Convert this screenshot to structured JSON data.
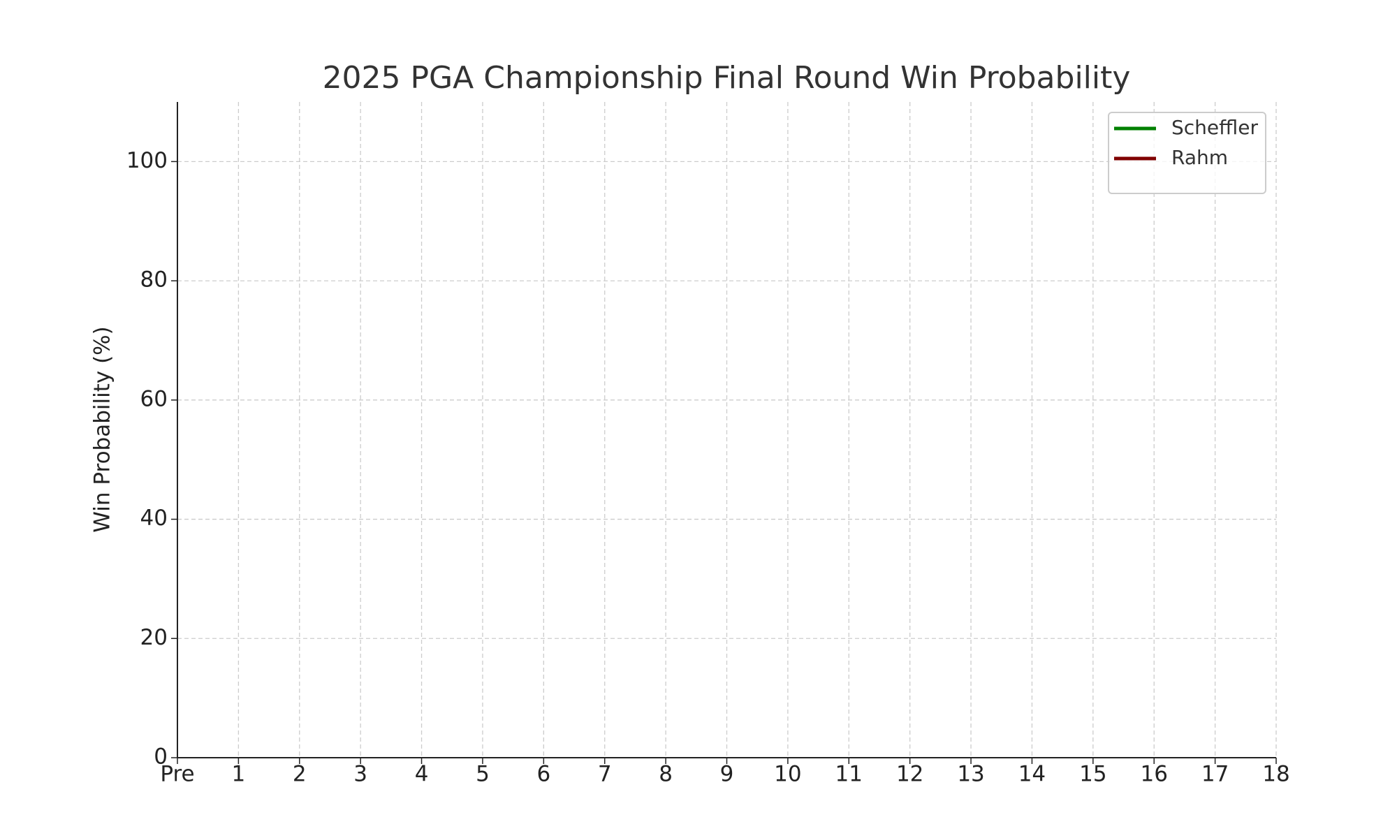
{
  "chart_data": {
    "type": "line",
    "title": "2025 PGA Championship Final Round Win Probability",
    "y_label": "Win Probability (%)",
    "categories": [
      "Pre",
      "1",
      "2",
      "3",
      "4",
      "5",
      "6",
      "7",
      "8",
      "9",
      "10",
      "11",
      "12",
      "13",
      "14",
      "15",
      "16",
      "17",
      "18"
    ],
    "series": [
      {
        "name": "Scheffler",
        "color": "#008000",
        "values": [
          null,
          null,
          null,
          null,
          null,
          null,
          null,
          null,
          null,
          null,
          null,
          null,
          null,
          null,
          null,
          null,
          null,
          null,
          null
        ]
      },
      {
        "name": "Rahm",
        "color": "#800000",
        "values": [
          null,
          null,
          null,
          null,
          null,
          null,
          null,
          null,
          null,
          null,
          null,
          null,
          null,
          null,
          null,
          null,
          null,
          null,
          null
        ]
      }
    ],
    "ylim": [
      0,
      110
    ],
    "yticks": [
      0,
      20,
      40,
      60,
      80,
      100
    ],
    "grid": true,
    "legend": "upper right"
  }
}
